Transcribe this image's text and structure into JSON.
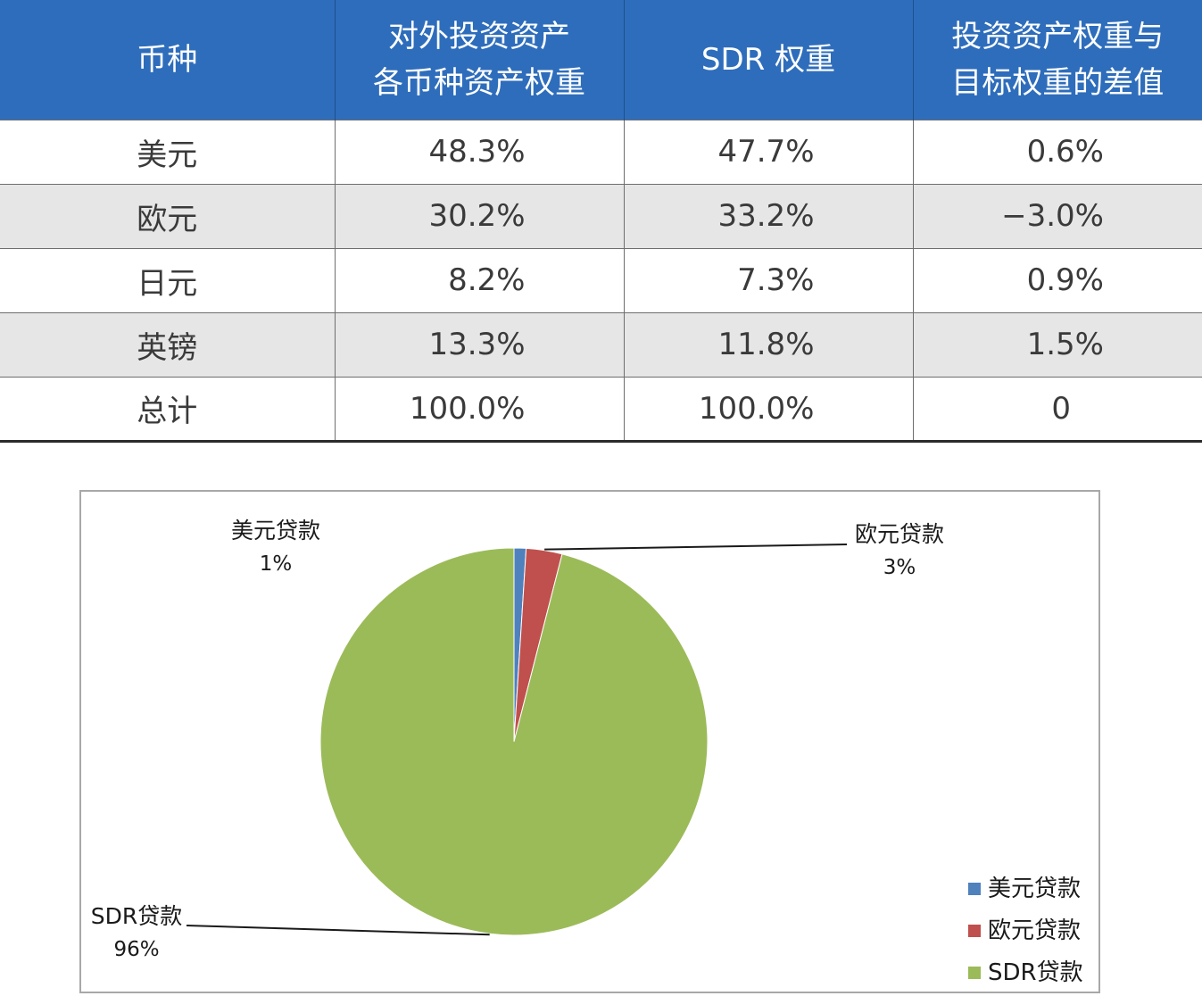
{
  "table": {
    "headers": [
      "币种",
      "对外投资资产\n各币种资产权重",
      "SDR 权重",
      "投资资产权重与\n目标权重的差值"
    ],
    "rows": [
      {
        "currency": "美元",
        "asset_weight": "48.3%",
        "sdr_weight": "47.7%",
        "diff": "0.6%"
      },
      {
        "currency": "欧元",
        "asset_weight": "30.2%",
        "sdr_weight": "33.2%",
        "diff": "−3.0%"
      },
      {
        "currency": "日元",
        "asset_weight": "8.2%",
        "sdr_weight": "7.3%",
        "diff": "0.9%"
      },
      {
        "currency": "英镑",
        "asset_weight": "13.3%",
        "sdr_weight": "11.8%",
        "diff": "1.5%"
      },
      {
        "currency": "总计",
        "asset_weight": "100.0%",
        "sdr_weight": "100.0%",
        "diff": "0"
      }
    ],
    "colors": {
      "header_bg": "#2e6dbb",
      "header_text": "#ffffff",
      "shaded_row": "#e6e6e6"
    }
  },
  "chart_data": {
    "type": "pie",
    "slices": [
      {
        "label": "美元贷款",
        "value": 1,
        "display": "1%",
        "color": "#4f81bd"
      },
      {
        "label": "欧元贷款",
        "value": 3,
        "display": "3%",
        "color": "#c0504d"
      },
      {
        "label": "SDR贷款",
        "value": 96,
        "display": "96%",
        "color": "#9bbb59"
      }
    ],
    "legend": [
      "美元贷款",
      "欧元贷款",
      "SDR贷款"
    ],
    "legend_position": "bottom-right",
    "data_labels": "outside with leader lines"
  }
}
